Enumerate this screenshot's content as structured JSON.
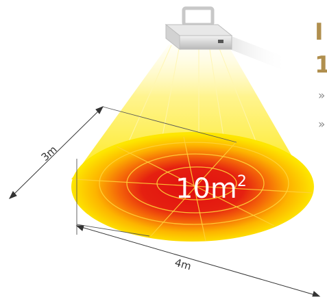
{
  "labels": {
    "width_label": "3m",
    "length_label": "4m",
    "area_base": "10m",
    "area_exponent": "2"
  },
  "right_text": {
    "line1": "I",
    "line2": "1",
    "bullet1": "»",
    "bullet2": "»"
  },
  "icons": {
    "lamp": "heater-lamp-icon"
  },
  "colors": {
    "beam_yellow": "#fde600",
    "heat_orange": "#ff8a00",
    "heat_red": "#e01010",
    "heading_gold": "#b08f4e",
    "dimension_line": "#333333"
  }
}
